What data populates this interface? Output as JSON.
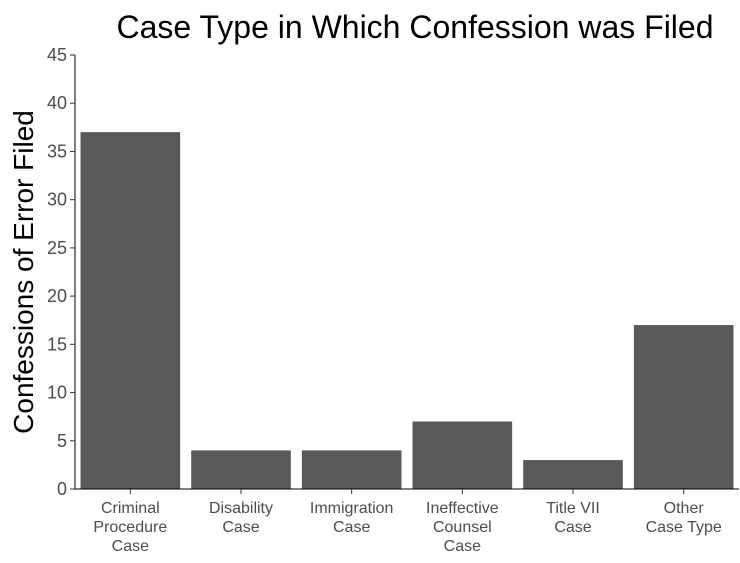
{
  "chart_data": {
    "type": "bar",
    "title": "Case Type in Which Confession was Filed",
    "ylabel": "Confessions of Error Filed",
    "xlabel": "",
    "categories": [
      [
        "Criminal",
        "Procedure",
        "Case"
      ],
      [
        "Disability",
        "Case"
      ],
      [
        "Immigration",
        "Case"
      ],
      [
        "Ineffective",
        "Counsel",
        "Case"
      ],
      [
        "Title VII",
        "Case"
      ],
      [
        "Other",
        "Case Type"
      ]
    ],
    "values": [
      37,
      4,
      4,
      7,
      3,
      17
    ],
    "ylim": [
      0,
      45
    ],
    "yticks": [
      0,
      5,
      10,
      15,
      20,
      25,
      30,
      35,
      40,
      45
    ],
    "grid": false,
    "bar_color": "#595959"
  }
}
